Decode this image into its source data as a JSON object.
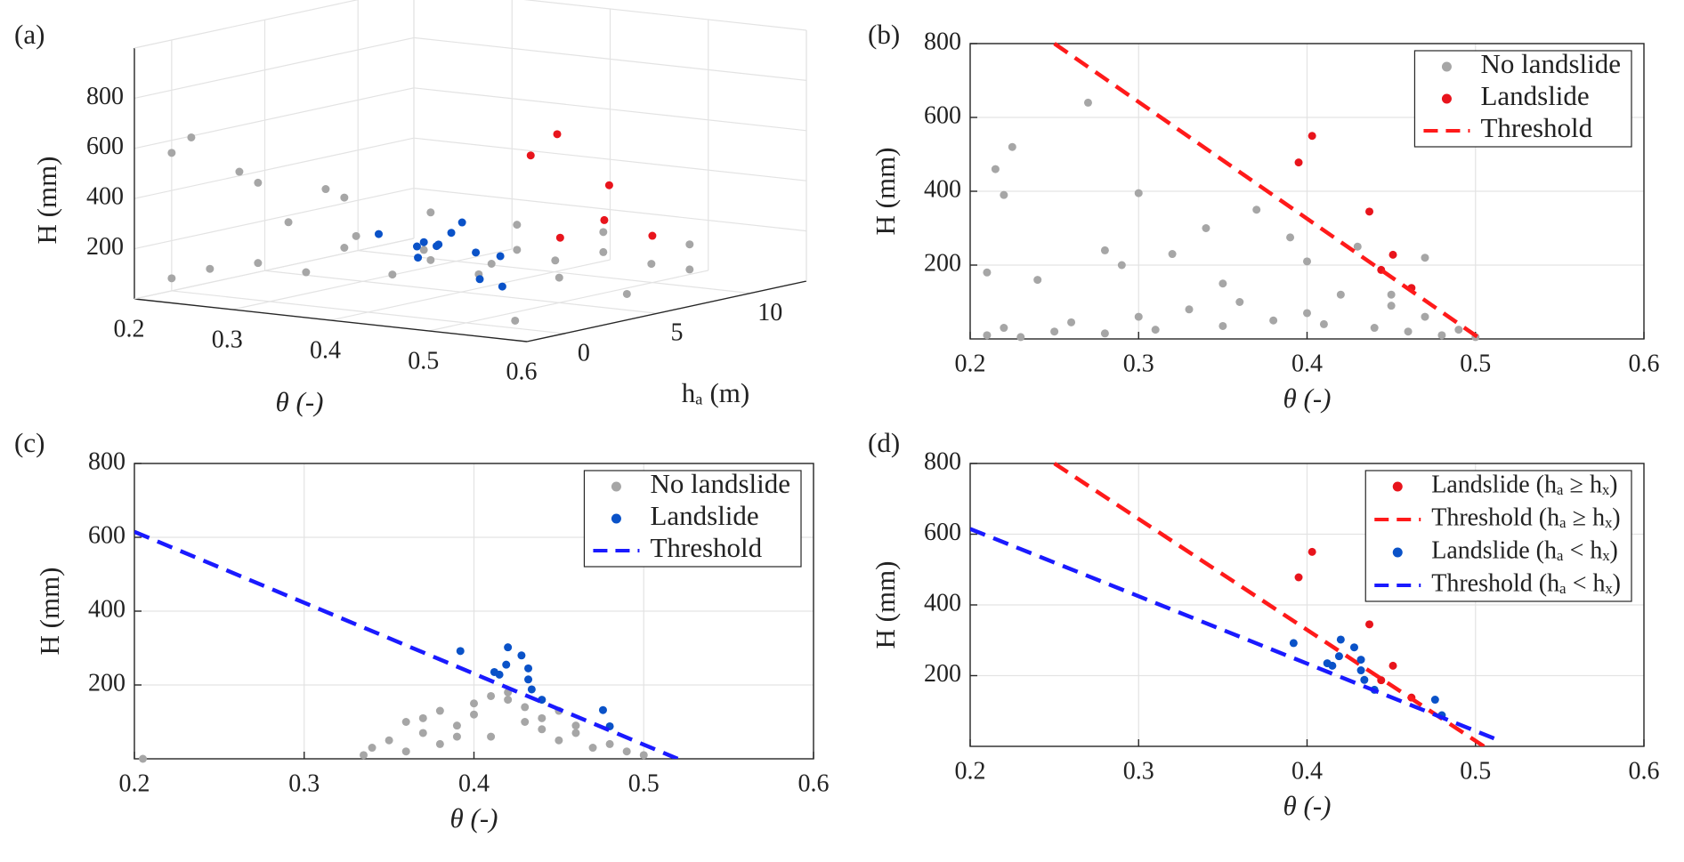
{
  "chart_data": [
    {
      "type": "scatter3d",
      "panel_label": "(a)",
      "xlabel": "θ (-)",
      "ylabel": "hₐ (m)",
      "zlabel": "H (mm)",
      "xlim": [
        0.2,
        0.6
      ],
      "ylim": [
        -2,
        13
      ],
      "zlim": [
        0,
        1000
      ],
      "xticks": [
        0.2,
        0.3,
        0.4,
        0.5,
        0.6
      ],
      "yticks": [
        0,
        5,
        10
      ],
      "zticks": [
        200,
        400,
        600,
        800
      ],
      "grid": true,
      "series": [
        {
          "color": "#a6a6a6",
          "style": "dots",
          "x": [
            0.2,
            0.22,
            0.25,
            0.28,
            0.3,
            0.33,
            0.35,
            0.38,
            0.4,
            0.42,
            0.45,
            0.48,
            0.5,
            0.3,
            0.35,
            0.4,
            0.45,
            0.5,
            0.55,
            0.2,
            0.25,
            0.3,
            0.35,
            0.4,
            0.45,
            0.5,
            0.55,
            0.25,
            0.22,
            0.3
          ],
          "y": [
            0,
            1,
            2,
            3,
            4,
            5,
            6,
            7,
            8,
            9,
            10,
            11,
            12,
            1,
            2,
            3,
            4,
            5,
            6,
            0,
            2,
            4,
            6,
            8,
            10,
            12,
            0,
            1,
            0,
            3
          ],
          "z": [
            50,
            80,
            100,
            60,
            150,
            40,
            90,
            30,
            120,
            70,
            100,
            50,
            20,
            300,
            250,
            200,
            150,
            100,
            40,
            550,
            420,
            350,
            280,
            220,
            180,
            120,
            30,
            480,
            620,
            400
          ]
        },
        {
          "color": "#e8141c",
          "style": "dots",
          "x": [
            0.395,
            0.403,
            0.437,
            0.444,
            0.451,
            0.462
          ],
          "y": [
            9,
            10,
            11,
            8,
            10,
            12
          ],
          "z": [
            478,
            550,
            345,
            187,
            228,
            138
          ]
        },
        {
          "color": "#0a52c8",
          "style": "dots",
          "x": [
            0.392,
            0.412,
            0.415,
            0.419,
            0.42,
            0.428,
            0.432,
            0.432,
            0.434,
            0.44,
            0.476,
            0.48
          ],
          "y": [
            1,
            2,
            3,
            2,
            4,
            3,
            2,
            1,
            4,
            5,
            2,
            3
          ],
          "z": [
            292,
            235,
            228,
            255,
            302,
            280,
            245,
            215,
            188,
            160,
            132,
            88
          ]
        }
      ]
    },
    {
      "type": "scatter",
      "panel_label": "(b)",
      "xlabel": "θ (-)",
      "ylabel": "H (mm)",
      "xlim": [
        0.2,
        0.6
      ],
      "ylim": [
        0,
        800
      ],
      "xticks": [
        0.2,
        0.3,
        0.4,
        0.5,
        0.6
      ],
      "yticks": [
        200,
        400,
        600,
        800
      ],
      "grid": true,
      "legend": "upper right",
      "series": [
        {
          "name": "No landslide",
          "color": "#a6a6a6",
          "style": "dots",
          "x": [
            0.21,
            0.22,
            0.23,
            0.25,
            0.26,
            0.28,
            0.3,
            0.31,
            0.33,
            0.35,
            0.36,
            0.38,
            0.4,
            0.41,
            0.42,
            0.44,
            0.45,
            0.46,
            0.47,
            0.48,
            0.49,
            0.5,
            0.215,
            0.225,
            0.27,
            0.3,
            0.34,
            0.37,
            0.39,
            0.43,
            0.21,
            0.24,
            0.29,
            0.32,
            0.35,
            0.4,
            0.45,
            0.22,
            0.28,
            0.47
          ],
          "values": [
            10,
            30,
            5,
            20,
            45,
            15,
            60,
            25,
            80,
            35,
            100,
            50,
            70,
            40,
            120,
            30,
            90,
            20,
            60,
            10,
            25,
            5,
            460,
            520,
            640,
            395,
            300,
            350,
            275,
            250,
            180,
            160,
            200,
            230,
            150,
            210,
            120,
            390,
            240,
            220
          ]
        },
        {
          "name": "Landslide",
          "color": "#e8141c",
          "style": "dots",
          "x": [
            0.395,
            0.403,
            0.437,
            0.444,
            0.451,
            0.462
          ],
          "values": [
            478,
            550,
            345,
            187,
            228,
            138
          ]
        },
        {
          "name": "Threshold",
          "color": "#ff1a1a",
          "style": "dashed",
          "x": [
            0.25,
            0.503
          ],
          "values": [
            800,
            0
          ]
        }
      ]
    },
    {
      "type": "scatter",
      "panel_label": "(c)",
      "xlabel": "θ (-)",
      "ylabel": "H (mm)",
      "xlim": [
        0.2,
        0.6
      ],
      "ylim": [
        0,
        800
      ],
      "xticks": [
        0.2,
        0.3,
        0.4,
        0.5,
        0.6
      ],
      "yticks": [
        200,
        400,
        600,
        800
      ],
      "grid": true,
      "legend": "upper right",
      "series": [
        {
          "name": "No landslide",
          "color": "#a6a6a6",
          "style": "dots",
          "x": [
            0.205,
            0.335,
            0.34,
            0.35,
            0.36,
            0.37,
            0.38,
            0.39,
            0.4,
            0.41,
            0.42,
            0.43,
            0.44,
            0.45,
            0.46,
            0.47,
            0.48,
            0.49,
            0.5,
            0.36,
            0.38,
            0.4,
            0.41,
            0.42,
            0.43,
            0.44,
            0.46,
            0.39,
            0.37,
            0.45
          ],
          "values": [
            0,
            10,
            30,
            50,
            20,
            70,
            40,
            90,
            120,
            60,
            180,
            100,
            80,
            50,
            70,
            30,
            40,
            20,
            10,
            100,
            130,
            150,
            170,
            160,
            140,
            110,
            90,
            60,
            110,
            130
          ]
        },
        {
          "name": "Landslide",
          "color": "#0a52c8",
          "style": "dots",
          "x": [
            0.392,
            0.412,
            0.415,
            0.419,
            0.42,
            0.428,
            0.432,
            0.432,
            0.434,
            0.44,
            0.476,
            0.48
          ],
          "values": [
            292,
            235,
            228,
            255,
            302,
            280,
            245,
            215,
            188,
            160,
            132,
            88
          ]
        },
        {
          "name": "Threshold",
          "color": "#1a1aff",
          "style": "dashed",
          "x": [
            0.2,
            0.52
          ],
          "values": [
            615,
            0
          ]
        }
      ]
    },
    {
      "type": "scatter",
      "panel_label": "(d)",
      "xlabel": "θ (-)",
      "ylabel": "H (mm)",
      "xlim": [
        0.2,
        0.6
      ],
      "ylim": [
        0,
        800
      ],
      "xticks": [
        0.2,
        0.3,
        0.4,
        0.5,
        0.6
      ],
      "yticks": [
        200,
        400,
        600,
        800
      ],
      "grid": true,
      "legend": "upper right",
      "series": [
        {
          "name": "Landslide (hₐ ≥ hₓ)",
          "color": "#e8141c",
          "style": "dots",
          "x": [
            0.395,
            0.403,
            0.437,
            0.444,
            0.451,
            0.462
          ],
          "values": [
            478,
            550,
            345,
            187,
            228,
            138
          ]
        },
        {
          "name": "Threshold (hₐ ≥ hₓ)",
          "color": "#ff1a1a",
          "style": "dashed",
          "x": [
            0.25,
            0.505
          ],
          "values": [
            800,
            0
          ]
        },
        {
          "name": "Landslide (hₐ < hₓ)",
          "color": "#0a52c8",
          "style": "dots",
          "x": [
            0.392,
            0.412,
            0.415,
            0.419,
            0.42,
            0.428,
            0.432,
            0.432,
            0.434,
            0.44,
            0.476,
            0.48
          ],
          "values": [
            292,
            235,
            228,
            255,
            302,
            280,
            245,
            215,
            188,
            160,
            132,
            88
          ]
        },
        {
          "name": "Threshold (hₐ < hₓ)",
          "color": "#1a1aff",
          "style": "dashed",
          "x": [
            0.2,
            0.515
          ],
          "values": [
            615,
            15
          ]
        }
      ]
    }
  ]
}
